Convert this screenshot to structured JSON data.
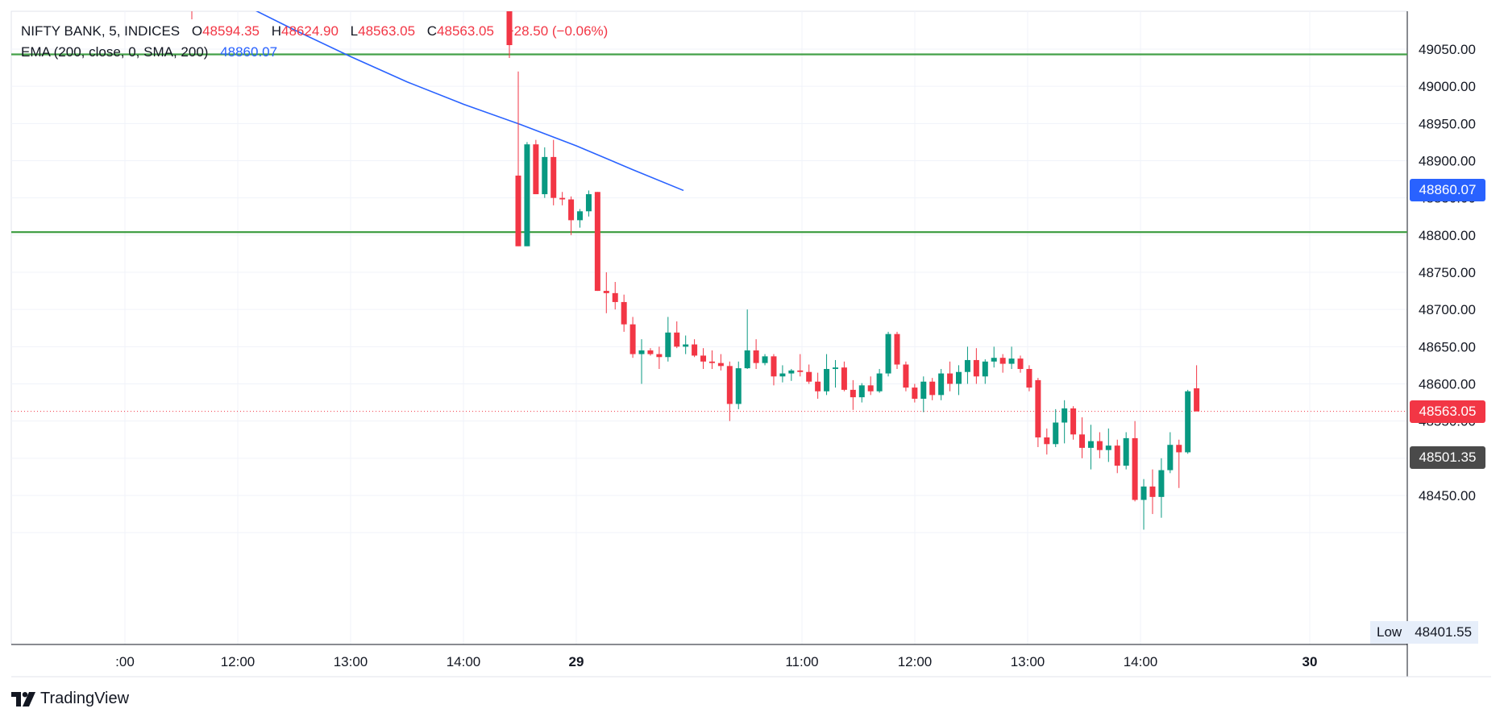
{
  "legend": {
    "symbol": "NIFTY BANK, 5, INDICES",
    "open_label": "O",
    "open": "48594.35",
    "high_label": "H",
    "high": "48624.90",
    "low_label": "L",
    "low": "48563.05",
    "close_label": "C",
    "close": "48563.05",
    "change": "−28.50 (−0.06%)",
    "ema_label": "EMA (200, close, 0, SMA, 200)",
    "ema_value": "48860.07"
  },
  "price_tags": {
    "ema": "48860.07",
    "last": "48563.05",
    "crosshair": "48501.35",
    "low_label": "Low",
    "low_value": "48401.55"
  },
  "footer": {
    "brand": "TradingView"
  },
  "colors": {
    "up": "#089981",
    "down": "#f23645",
    "ema": "#2962ff",
    "level": "#43a047",
    "crosshair_tag": "#4a4a4a"
  },
  "chart_data": {
    "type": "candlestick",
    "y_ticks": [
      49050,
      49000,
      48950,
      48900,
      48850,
      48800,
      48750,
      48700,
      48650,
      48600,
      48550,
      48500,
      48450,
      48400
    ],
    "y_tick_labels": [
      "49050.00",
      "49000.00",
      "48950.00",
      "48900.00",
      "48850.00",
      "48800.00",
      "48750.00",
      "48700.00",
      "48650.00",
      "48600.00",
      "48550.00",
      "48500.00",
      "48450.00"
    ],
    "ylim": [
      48390,
      49105
    ],
    "x_labels": [
      ":00",
      "12:00",
      "13:00",
      "14:00",
      "29",
      "11:00",
      "12:00",
      "13:00",
      "14:00",
      "30"
    ],
    "x_label_pos": [
      0,
      1,
      2,
      3,
      4,
      6,
      7,
      8,
      9,
      10.5
    ],
    "levels": [
      49043,
      48804
    ],
    "last_price": 48563.05,
    "ema_series": [
      [
        -3.1,
        49150
      ],
      [
        -2.6,
        49118
      ],
      [
        -2.0,
        49100
      ],
      [
        1.05,
        49110
      ],
      [
        1.5,
        49076
      ],
      [
        2.0,
        49040
      ],
      [
        2.5,
        49006
      ],
      [
        3.0,
        48976
      ],
      [
        3.5,
        48949
      ],
      [
        4.0,
        48920
      ],
      [
        4.5,
        48888
      ],
      [
        4.95,
        48860
      ]
    ],
    "candles_day1": [
      [
        48880,
        49020,
        48785,
        48785
      ],
      [
        48785,
        48925,
        48785,
        48922
      ],
      [
        48922,
        48928,
        48855,
        48855
      ],
      [
        48855,
        48918,
        48850,
        48905
      ],
      [
        48905,
        48928,
        48840,
        48850
      ],
      [
        48850,
        48858,
        48840,
        48848
      ],
      [
        48848,
        48852,
        48800,
        48820
      ],
      [
        48820,
        48835,
        48810,
        48832
      ],
      [
        48832,
        48860,
        48825,
        48855
      ],
      [
        48858,
        48858,
        48725,
        48725
      ],
      [
        48725,
        48750,
        48695,
        48722
      ],
      [
        48722,
        48737,
        48700,
        48710
      ],
      [
        48710,
        48720,
        48670,
        48680
      ],
      [
        48680,
        48690,
        48635,
        48640
      ],
      [
        48640,
        48660,
        48600,
        48645
      ],
      [
        48645,
        48648,
        48638,
        48640
      ],
      [
        48640,
        48650,
        48620,
        48636
      ],
      [
        48636,
        48690,
        48630,
        48669
      ],
      [
        48669,
        48684,
        48648,
        48650
      ],
      [
        48650,
        48665,
        48640,
        48653
      ],
      [
        48653,
        48660,
        48636,
        48638
      ],
      [
        48638,
        48648,
        48620,
        48630
      ],
      [
        48630,
        48645,
        48620,
        48628
      ],
      [
        48628,
        48640,
        48618,
        48624
      ],
      [
        48624,
        48630,
        48550,
        48573
      ],
      [
        48573,
        48630,
        48566,
        48621
      ],
      [
        48621,
        48700,
        48620,
        48645
      ],
      [
        48645,
        48660,
        48620,
        48628
      ],
      [
        48628,
        48640,
        48625,
        48637
      ],
      [
        48637,
        48640,
        48598,
        48610
      ],
      [
        48610,
        48625,
        48602,
        48614
      ],
      [
        48614,
        48620,
        48604,
        48618
      ],
      [
        48618,
        48640,
        48610,
        48616
      ],
      [
        48616,
        48626,
        48600,
        48603
      ],
      [
        48603,
        48615,
        48580,
        48590
      ],
      [
        48590,
        48640,
        48585,
        48620
      ],
      [
        48620,
        48632,
        48595,
        48622
      ],
      [
        48622,
        48630,
        48590,
        48592
      ],
      [
        48592,
        48605,
        48565,
        48582
      ],
      [
        48582,
        48601,
        48575,
        48598
      ],
      [
        48598,
        48610,
        48585,
        48590
      ],
      [
        48590,
        48620,
        48588,
        48614
      ],
      [
        48614,
        48670,
        48610,
        48667
      ],
      [
        48667,
        48670,
        48620,
        48626
      ],
      [
        48626,
        48630,
        48590,
        48595
      ],
      [
        48595,
        48600,
        48575,
        48580
      ],
      [
        48580,
        48610,
        48562,
        48603
      ],
      [
        48603,
        48608,
        48578,
        48585
      ],
      [
        48585,
        48620,
        48578,
        48614
      ],
      [
        48614,
        48630,
        48590,
        48600
      ],
      [
        48600,
        48625,
        48585,
        48616
      ],
      [
        48616,
        48650,
        48600,
        48632
      ],
      [
        48632,
        48648,
        48600,
        48610
      ],
      [
        48610,
        48633,
        48600,
        48630
      ],
      [
        48630,
        48650,
        48622,
        48635
      ],
      [
        48635,
        48640,
        48615,
        48627
      ],
      [
        48627,
        48650,
        48620,
        48634
      ],
      [
        48634,
        48638,
        48615,
        48620
      ],
      [
        48620,
        48625,
        48590,
        48595
      ],
      [
        48605,
        48608,
        48515,
        48528
      ],
      [
        48528,
        48540,
        48505,
        48519
      ],
      [
        48519,
        48566,
        48515,
        48548
      ],
      [
        48548,
        48578,
        48520,
        48567
      ],
      [
        48567,
        48570,
        48525,
        48532
      ],
      [
        48532,
        48555,
        48500,
        48514
      ],
      [
        48514,
        48545,
        48485,
        48523
      ],
      [
        48523,
        48535,
        48500,
        48511
      ],
      [
        48511,
        48540,
        48495,
        48517
      ],
      [
        48517,
        48525,
        48480,
        48490
      ],
      [
        48490,
        48535,
        48485,
        48527
      ],
      [
        48527,
        48550,
        48442,
        48444
      ],
      [
        48444,
        48472,
        48404,
        48462
      ],
      [
        48462,
        48485,
        48425,
        48448
      ],
      [
        48448,
        48500,
        48420,
        48484
      ],
      [
        48484,
        48535,
        48480,
        48518
      ],
      [
        48518,
        48525,
        48460,
        48508
      ],
      [
        48508,
        48592,
        48506,
        48590
      ],
      [
        48594,
        48625,
        48563,
        48563
      ]
    ]
  }
}
